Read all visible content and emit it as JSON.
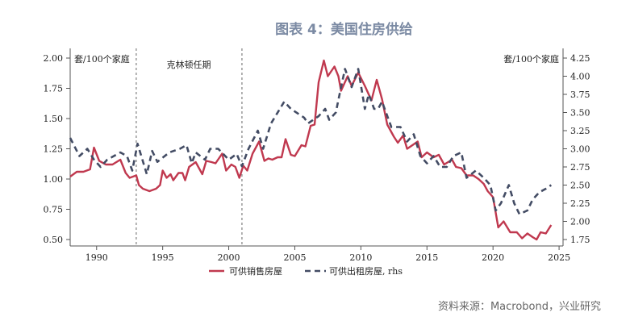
{
  "title": "图表 4：美国住房供给",
  "source": "资料来源：Macrobond，兴业研究",
  "chart_data": {
    "type": "line",
    "title": "图表 4：美国住房供给",
    "left_unit": "套/100个家庭",
    "right_unit": "套/100个家庭",
    "annotation": "克林顿任期",
    "vlines": [
      1993,
      2001
    ],
    "xlim": [
      1988,
      2025.3
    ],
    "xticks": [
      1990,
      1995,
      2000,
      2005,
      2010,
      2015,
      2020,
      2025
    ],
    "ylim_left": [
      0.44,
      2.03
    ],
    "yticks_left": [
      "0.50",
      "0.75",
      "1.00",
      "1.25",
      "1.50",
      "1.75",
      "2.00"
    ],
    "ylim_right": [
      1.69,
      4.28
    ],
    "yticks_right": [
      "1.75",
      "2.00",
      "2.25",
      "2.50",
      "2.75",
      "3.00",
      "3.25",
      "3.50",
      "3.75",
      "4.00",
      "4.25"
    ],
    "grid": false,
    "legend_position": "bottom",
    "colors": {
      "sale": "#c0394f",
      "rent": "#434c64"
    },
    "series": [
      {
        "name": "可供销售房屋",
        "axis": "left",
        "style": "solid",
        "x": [
          1988,
          1988.5,
          1989,
          1989.5,
          1989.8,
          1990.2,
          1990.7,
          1991.2,
          1991.8,
          1992.2,
          1992.5,
          1993,
          1993.2,
          1993.5,
          1994,
          1994.5,
          1994.8,
          1995,
          1995.3,
          1995.6,
          1995.8,
          1996.2,
          1996.5,
          1996.7,
          1997,
          1997.5,
          1998,
          1998.3,
          1998.7,
          1999,
          1999.5,
          1999.8,
          2000.2,
          2000.5,
          2000.8,
          2001.1,
          2001.4,
          2001.8,
          2002.3,
          2002.7,
          2003,
          2003.3,
          2003.7,
          2004,
          2004.3,
          2004.7,
          2005,
          2005.5,
          2005.8,
          2006.2,
          2006.5,
          2006.8,
          2007.2,
          2007.5,
          2008,
          2008.3,
          2008.5,
          2009,
          2009.3,
          2009.8,
          2010.3,
          2010.8,
          2011.2,
          2011.6,
          2012,
          2012.5,
          2012.8,
          2013.2,
          2013.5,
          2013.9,
          2014.3,
          2014.6,
          2015,
          2015.5,
          2015.9,
          2016.3,
          2016.9,
          2017.2,
          2017.6,
          2018,
          2018.5,
          2018.9,
          2019.3,
          2019.6,
          2020,
          2020.4,
          2020.8,
          2021.3,
          2021.8,
          2022.2,
          2022.6,
          2023,
          2023.3,
          2023.6,
          2024,
          2024.4
        ],
        "values": [
          1.02,
          1.06,
          1.06,
          1.08,
          1.26,
          1.15,
          1.12,
          1.12,
          1.16,
          1.05,
          1.01,
          1.03,
          0.95,
          0.92,
          0.9,
          0.92,
          0.95,
          1.07,
          1.01,
          1.04,
          0.99,
          1.05,
          1.05,
          0.99,
          1.1,
          1.14,
          1.04,
          1.15,
          1.14,
          1.13,
          1.21,
          1.07,
          1.12,
          1.1,
          1.01,
          1.11,
          1.07,
          1.21,
          1.31,
          1.15,
          1.17,
          1.16,
          1.18,
          1.18,
          1.33,
          1.2,
          1.19,
          1.28,
          1.27,
          1.44,
          1.45,
          1.8,
          1.98,
          1.85,
          1.93,
          1.85,
          1.73,
          1.85,
          1.77,
          1.88,
          1.77,
          1.65,
          1.82,
          1.66,
          1.45,
          1.35,
          1.3,
          1.36,
          1.25,
          1.28,
          1.31,
          1.18,
          1.22,
          1.18,
          1.2,
          1.12,
          1.16,
          1.1,
          1.09,
          1.03,
          1.03,
          1.0,
          0.96,
          0.9,
          0.85,
          0.6,
          0.65,
          0.56,
          0.56,
          0.51,
          0.55,
          0.52,
          0.5,
          0.56,
          0.55,
          0.62
        ]
      },
      {
        "name": "可供出租房屋, rhs",
        "axis": "right",
        "style": "dashed",
        "x": [
          1988,
          1988.7,
          1989.3,
          1989.8,
          1990.3,
          1990.8,
          1991.3,
          1991.8,
          1992.3,
          1992.7,
          1993.1,
          1993.8,
          1994.2,
          1994.6,
          1995.5,
          1996.3,
          1996.8,
          1997.2,
          1997.5,
          1998.2,
          1998.6,
          1999.2,
          2000,
          2000.6,
          2001,
          2001.5,
          2002.2,
          2002.6,
          2003.2,
          2004.2,
          2004.7,
          2005.7,
          2006,
          2006.8,
          2007.3,
          2007.6,
          2008.1,
          2008.5,
          2008.8,
          2009.3,
          2009.8,
          2010.3,
          2010.6,
          2011,
          2011.3,
          2011.6,
          2012.3,
          2013,
          2013.5,
          2014,
          2014.5,
          2015,
          2015.5,
          2016,
          2016.5,
          2017,
          2017.6,
          2018,
          2018.7,
          2019.3,
          2019.8,
          2020.2,
          2020.6,
          2021.2,
          2021.6,
          2022,
          2022.6,
          2023,
          2023.5,
          2024,
          2024.4
        ],
        "values": [
          3.15,
          2.9,
          3.0,
          2.85,
          2.75,
          2.85,
          2.9,
          2.95,
          2.9,
          2.7,
          3.07,
          2.65,
          2.97,
          2.82,
          2.95,
          3.0,
          3.05,
          2.8,
          2.95,
          2.85,
          3.0,
          3.0,
          2.85,
          2.93,
          2.76,
          3.0,
          3.25,
          3.0,
          3.35,
          3.65,
          3.55,
          3.43,
          3.35,
          3.45,
          3.55,
          3.4,
          3.5,
          3.85,
          4.1,
          3.85,
          4.1,
          3.55,
          3.75,
          3.55,
          3.55,
          3.65,
          3.3,
          3.3,
          3.1,
          3.2,
          2.9,
          2.8,
          2.9,
          2.75,
          2.75,
          2.9,
          2.95,
          2.6,
          2.7,
          2.6,
          2.5,
          2.15,
          2.25,
          2.5,
          2.25,
          2.1,
          2.15,
          2.3,
          2.4,
          2.45,
          2.5
        ]
      }
    ]
  }
}
